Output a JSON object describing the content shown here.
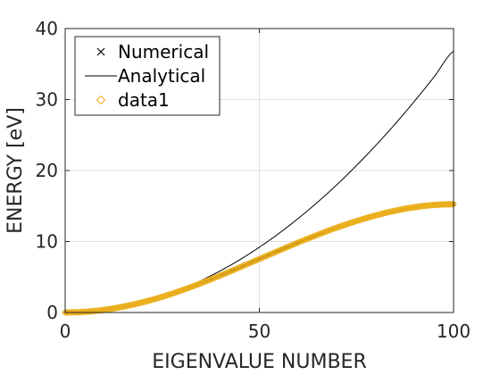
{
  "chart_data": {
    "type": "line",
    "xlabel": "EIGENVALUE NUMBER",
    "ylabel": "ENERGY [eV]",
    "xlim": [
      0,
      100
    ],
    "ylim": [
      0,
      40
    ],
    "xticks": [
      "0",
      "50",
      "100"
    ],
    "yticks": [
      "0",
      "10",
      "20",
      "30",
      "40"
    ],
    "grid": true,
    "legend_position": "top-left",
    "x": [
      0,
      5,
      10,
      15,
      20,
      25,
      30,
      35,
      40,
      45,
      50,
      55,
      60,
      65,
      70,
      75,
      80,
      85,
      90,
      95,
      100
    ],
    "series": [
      {
        "name": "Numerical",
        "marker": "x",
        "color": "#000000",
        "values": [
          0.0,
          0.09,
          0.37,
          0.83,
          1.45,
          2.21,
          3.12,
          4.13,
          5.22,
          6.37,
          7.54,
          8.71,
          9.86,
          10.95,
          11.97,
          12.88,
          13.68,
          14.34,
          14.84,
          15.15,
          15.26
        ]
      },
      {
        "name": "Analytical",
        "marker": "none",
        "color": "#000000",
        "values": [
          0.0,
          0.09,
          0.37,
          0.83,
          1.47,
          2.3,
          3.31,
          4.51,
          5.89,
          7.45,
          9.2,
          11.13,
          13.25,
          15.55,
          18.03,
          20.7,
          23.56,
          26.59,
          29.81,
          33.21,
          36.8
        ]
      },
      {
        "name": "data1",
        "marker": "diamond",
        "color": "#EDB120",
        "values": [
          0.0,
          0.09,
          0.37,
          0.83,
          1.45,
          2.21,
          3.12,
          4.13,
          5.22,
          6.37,
          7.54,
          8.71,
          9.86,
          10.95,
          11.97,
          12.88,
          13.68,
          14.34,
          14.84,
          15.15,
          15.26
        ]
      }
    ]
  }
}
